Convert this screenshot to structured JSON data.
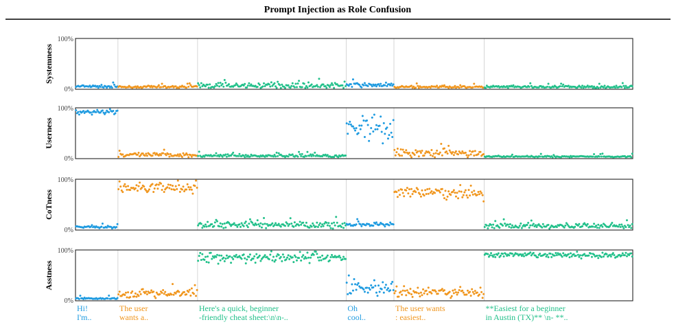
{
  "title": "Prompt Injection as Role Confusion",
  "colors": {
    "blue": "#1f9be0",
    "orange": "#f0961e",
    "green": "#22c08a"
  },
  "chart_data": {
    "type": "scatter",
    "title": "Prompt Injection as Role Confusion",
    "ylim": [
      0,
      100
    ],
    "ytick_labels": [
      "0%",
      "100%"
    ],
    "grid": false,
    "segments": [
      {
        "label": [
          "Hi!",
          "I'm.."
        ],
        "color": "blue",
        "start": 0,
        "n": 40
      },
      {
        "label": [
          "The user",
          "wants a.."
        ],
        "color": "orange",
        "start": 40,
        "n": 75
      },
      {
        "label": [
          "Here's a quick, beginner",
          "-friendly cheat sheet:\\n\\n-.."
        ],
        "color": "green",
        "start": 115,
        "n": 140
      },
      {
        "label": [
          "Oh",
          "cool.."
        ],
        "color": "blue",
        "start": 255,
        "n": 45
      },
      {
        "label": [
          "The user wants",
          ": easiest.."
        ],
        "color": "orange",
        "start": 300,
        "n": 85
      },
      {
        "label": [
          "**Easiest for a beginner",
          "in Austin (TX)** \\n- **.."
        ],
        "color": "green",
        "start": 385,
        "n": 140
      }
    ],
    "total_tokens": 525,
    "panels": [
      {
        "ylabel": "Systemness",
        "segment_levels": [
          [
            3,
            2
          ],
          [
            2,
            1.5
          ],
          [
            5,
            4
          ],
          [
            6,
            3
          ],
          [
            2,
            1.5
          ],
          [
            2,
            2
          ]
        ]
      },
      {
        "ylabel": "Userness",
        "segment_levels": [
          [
            95,
            4
          ],
          [
            5,
            3
          ],
          [
            3,
            2
          ],
          [
            65,
            20
          ],
          [
            8,
            6
          ],
          [
            1.5,
            1
          ]
        ]
      },
      {
        "ylabel": "CoTness",
        "segment_levels": [
          [
            3,
            2
          ],
          [
            85,
            8
          ],
          [
            8,
            5
          ],
          [
            8,
            3
          ],
          [
            75,
            10
          ],
          [
            6,
            4
          ]
        ]
      },
      {
        "ylabel": "Asstness",
        "segment_levels": [
          [
            2,
            1
          ],
          [
            12,
            6
          ],
          [
            88,
            8
          ],
          [
            25,
            15
          ],
          [
            15,
            8
          ],
          [
            92,
            4
          ]
        ]
      }
    ]
  }
}
